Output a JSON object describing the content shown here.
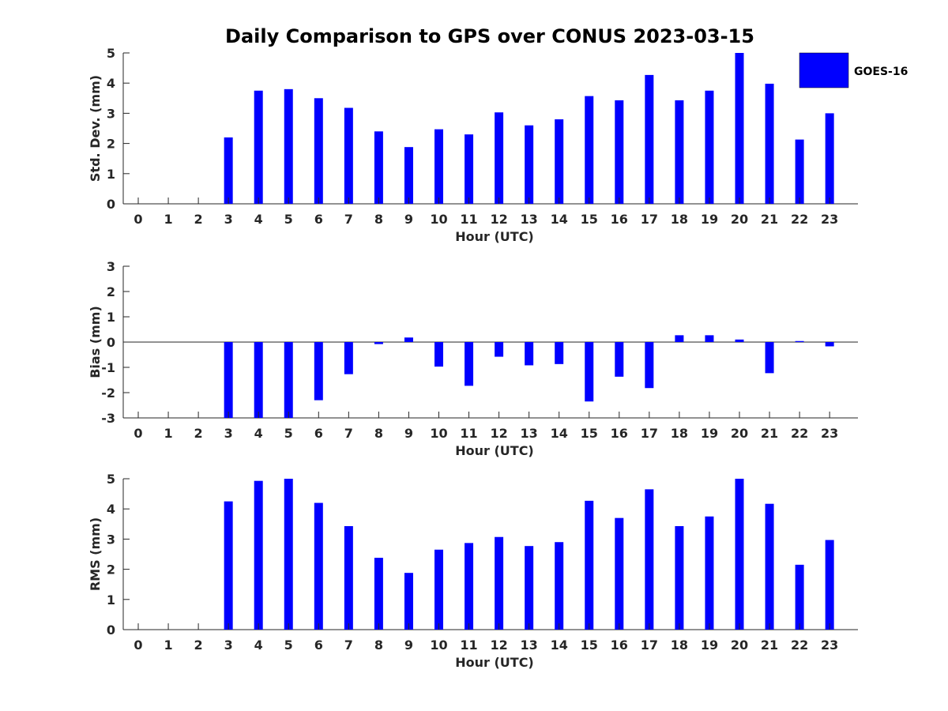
{
  "chart_data": {
    "title": "Daily Comparison to GPS over CONUS 2023-03-15",
    "legend": {
      "label": "GOES-16",
      "color": "#0000ff",
      "placement": "top-right"
    },
    "panels": [
      {
        "type": "bar",
        "id": "std",
        "ylabel": "Std. Dev. (mm)",
        "xlabel": "Hour (UTC)",
        "ylim": [
          0,
          5
        ],
        "yticks": [
          0,
          1,
          2,
          3,
          4,
          5
        ],
        "categories": [
          0,
          1,
          2,
          3,
          4,
          5,
          6,
          7,
          8,
          9,
          10,
          11,
          12,
          13,
          14,
          15,
          16,
          17,
          18,
          19,
          20,
          21,
          22,
          23
        ],
        "values": [
          null,
          null,
          null,
          2.2,
          3.75,
          3.8,
          3.5,
          3.18,
          2.4,
          1.88,
          2.47,
          2.3,
          3.03,
          2.6,
          2.8,
          3.57,
          3.43,
          4.27,
          3.43,
          3.75,
          5.0,
          3.98,
          2.13,
          3.0
        ]
      },
      {
        "type": "bar",
        "id": "bias",
        "ylabel": "Bias (mm)",
        "xlabel": "Hour (UTC)",
        "ylim": [
          -3,
          3
        ],
        "yticks": [
          -3,
          -2,
          -1,
          0,
          1,
          2,
          3
        ],
        "categories": [
          0,
          1,
          2,
          3,
          4,
          5,
          6,
          7,
          8,
          9,
          10,
          11,
          12,
          13,
          14,
          15,
          16,
          17,
          18,
          19,
          20,
          21,
          22,
          23
        ],
        "values": [
          null,
          null,
          null,
          -3.0,
          -3.0,
          -3.0,
          -2.3,
          -1.27,
          -0.08,
          0.18,
          -0.97,
          -1.73,
          -0.58,
          -0.92,
          -0.87,
          -2.35,
          -1.37,
          -1.82,
          0.27,
          0.27,
          0.1,
          -1.23,
          0.04,
          -0.17
        ]
      },
      {
        "type": "bar",
        "id": "rms",
        "ylabel": "RMS (mm)",
        "xlabel": "Hour (UTC)",
        "ylim": [
          0,
          5
        ],
        "yticks": [
          0,
          1,
          2,
          3,
          4,
          5
        ],
        "categories": [
          0,
          1,
          2,
          3,
          4,
          5,
          6,
          7,
          8,
          9,
          10,
          11,
          12,
          13,
          14,
          15,
          16,
          17,
          18,
          19,
          20,
          21,
          22,
          23
        ],
        "values": [
          null,
          null,
          null,
          4.25,
          4.93,
          5.0,
          4.2,
          3.43,
          2.38,
          1.88,
          2.65,
          2.87,
          3.07,
          2.77,
          2.9,
          4.27,
          3.7,
          4.65,
          3.43,
          3.75,
          5.0,
          4.17,
          2.15,
          2.97
        ]
      }
    ]
  }
}
